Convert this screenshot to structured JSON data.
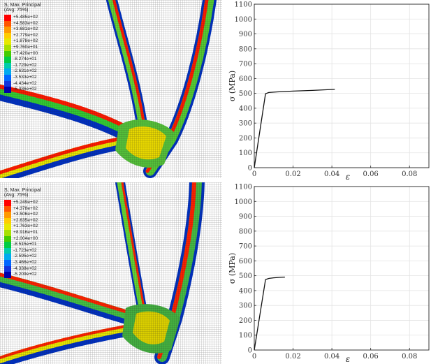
{
  "legends": [
    {
      "title": "S, Max. Principal",
      "subtitle": "(Avg: 75%)",
      "values": [
        "+5.485e+02",
        "+4.583e+02",
        "+3.681e+02",
        "+2.779e+02",
        "+1.878e+02",
        "+9.760e+01",
        "+7.420e+00",
        "-8.274e+01",
        "-1.729e+02",
        "-2.631e+02",
        "-3.533e+02",
        "-4.434e+02",
        "-5.336e+02"
      ]
    },
    {
      "title": "S, Max. Principal",
      "subtitle": "(Avg: 75%)",
      "values": [
        "+5.249e+02",
        "+4.378e+02",
        "+3.506e+02",
        "+2.635e+02",
        "+1.763e+02",
        "+8.916e+01",
        "+2.004e+00",
        "-8.515e+01",
        "-1.723e+02",
        "-2.595e+02",
        "-3.466e+02",
        "-4.338e+02",
        "-5.209e+02"
      ]
    }
  ],
  "legend_colors": [
    "#ff0000",
    "#ff5500",
    "#ff9900",
    "#ffcc00",
    "#e8e800",
    "#a8e000",
    "#44cc00",
    "#00cc44",
    "#00ccaa",
    "#00aaee",
    "#0066ff",
    "#1133dd",
    "#0000aa"
  ],
  "chart_data": [
    {
      "type": "line",
      "xlabel": "ε",
      "ylabel": "σ (MPa)",
      "xlim": [
        0,
        0.09
      ],
      "ylim": [
        0,
        1100
      ],
      "xticks": [
        0,
        0.02,
        0.04,
        0.06,
        0.08
      ],
      "xtick_labels": [
        "0",
        "0.02",
        "0.04",
        "0.06",
        "0.08"
      ],
      "yticks": [
        0,
        100,
        200,
        300,
        400,
        500,
        600,
        700,
        800,
        900,
        1000,
        1100
      ],
      "ytick_labels": [
        "0",
        "100",
        "200",
        "300",
        "400",
        "500",
        "600",
        "700",
        "800",
        "900",
        "1000",
        "1100"
      ],
      "grid": true,
      "series": [
        {
          "x": [
            0,
            0.0058,
            0.0075,
            0.012,
            0.02,
            0.03,
            0.0415
          ],
          "y": [
            0,
            498,
            506,
            510,
            515,
            520,
            527
          ]
        }
      ]
    },
    {
      "type": "line",
      "xlabel": "ε",
      "ylabel": "σ (MPa)",
      "xlim": [
        0,
        0.09
      ],
      "ylim": [
        0,
        1100
      ],
      "xticks": [
        0,
        0.02,
        0.04,
        0.06,
        0.08
      ],
      "xtick_labels": [
        "0",
        "0.02",
        "0.04",
        "0.06",
        "0.08"
      ],
      "yticks": [
        0,
        100,
        200,
        300,
        400,
        500,
        600,
        700,
        800,
        900,
        1000,
        1100
      ],
      "ytick_labels": [
        "0",
        "100",
        "200",
        "300",
        "400",
        "500",
        "600",
        "700",
        "800",
        "900",
        "1000",
        "1100"
      ],
      "grid": true,
      "series": [
        {
          "x": [
            0,
            0.0058,
            0.0075,
            0.01,
            0.013,
            0.0158
          ],
          "y": [
            0,
            474,
            482,
            486,
            489,
            491
          ]
        }
      ]
    }
  ]
}
